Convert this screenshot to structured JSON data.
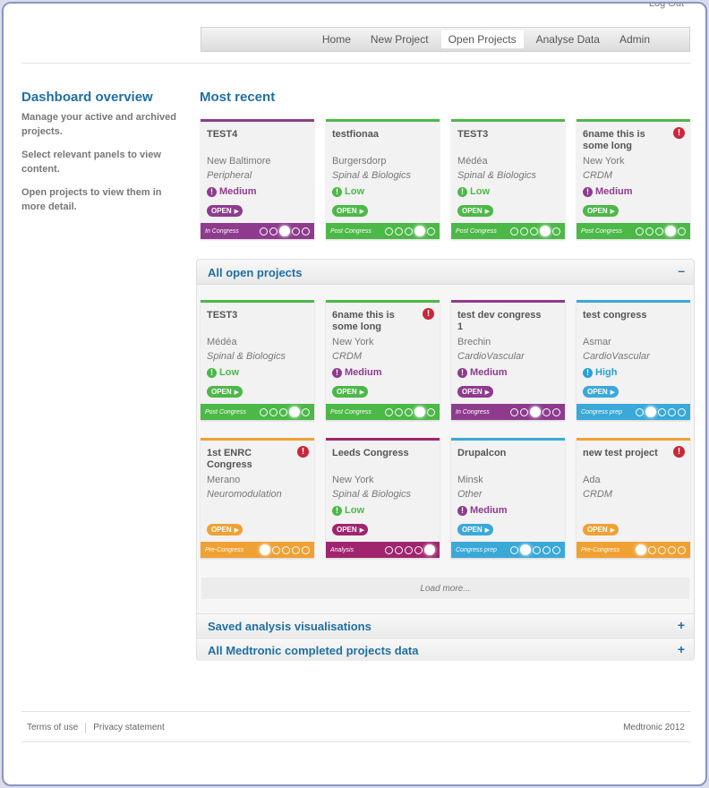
{
  "header": {
    "logout": "Log Out",
    "nav": [
      "Home",
      "New Project",
      "Open Projects",
      "Analyse Data",
      "Admin"
    ],
    "active_nav": "Open Projects"
  },
  "sidebar": {
    "title": "Dashboard overview",
    "paragraphs": [
      "Manage your active and archived projects.",
      "Select relevant panels to view content.",
      "Open projects to view them in more detail."
    ]
  },
  "most_recent": {
    "title": "Most recent",
    "cards": [
      {
        "title": "TEST4",
        "location": "New Baltimore",
        "area": "Peripheral",
        "priority": "Medium",
        "stage": "In Congress",
        "stage_step": 3,
        "alert": false,
        "theme": "purple"
      },
      {
        "title": "testfionaa",
        "location": "Burgersdorp",
        "area": "Spinal & Biologics",
        "priority": "Low",
        "stage": "Post Congress",
        "stage_step": 4,
        "alert": false,
        "theme": "green"
      },
      {
        "title": "TEST3",
        "location": "Médéa",
        "area": "Spinal & Biologics",
        "priority": "Low",
        "stage": "Post Congress",
        "stage_step": 4,
        "alert": false,
        "theme": "green"
      },
      {
        "title": "6name this is some long",
        "location": "New York",
        "area": "CRDM",
        "priority": "Medium",
        "stage": "Post Congress",
        "stage_step": 4,
        "alert": true,
        "theme": "green"
      }
    ]
  },
  "open_projects": {
    "title": "All open projects",
    "toggle": "–",
    "load_more": "Load more...",
    "cards": [
      {
        "title": "TEST3",
        "location": "Médéa",
        "area": "Spinal & Biologics",
        "priority": "Low",
        "stage": "Post Congress",
        "stage_step": 4,
        "alert": false,
        "theme": "green"
      },
      {
        "title": "6name this is some long",
        "location": "New York",
        "area": "CRDM",
        "priority": "Medium",
        "stage": "Post Congress",
        "stage_step": 4,
        "alert": true,
        "theme": "green"
      },
      {
        "title": "test dev congress 1",
        "location": "Brechin",
        "area": "CardioVascular",
        "priority": "Medium",
        "stage": "In Congress",
        "stage_step": 3,
        "alert": false,
        "theme": "purple"
      },
      {
        "title": "test congress",
        "location": "Asmar",
        "area": "CardioVascular",
        "priority": "High",
        "stage": "Congress prep",
        "stage_step": 2,
        "alert": false,
        "theme": "blue"
      },
      {
        "title": "1st ENRC Congress",
        "location": "Merano",
        "area": "Neuromodulation",
        "priority": "",
        "stage": "Pre-Congress",
        "stage_step": 1,
        "alert": true,
        "theme": "orange"
      },
      {
        "title": "Leeds Congress",
        "location": "New York",
        "area": "Spinal & Biologics",
        "priority": "Low",
        "stage": "Analysis",
        "stage_step": 5,
        "alert": false,
        "theme": "magenta"
      },
      {
        "title": "Drupalcon",
        "location": "Minsk",
        "area": "Other",
        "priority": "Medium",
        "stage": "Congress prep",
        "stage_step": 2,
        "alert": false,
        "theme": "blue"
      },
      {
        "title": "new test project",
        "location": "Ada",
        "area": "CRDM",
        "priority": "",
        "stage": "Pre-Congress",
        "stage_step": 1,
        "alert": true,
        "theme": "orange"
      }
    ]
  },
  "saved_panel": {
    "title": "Saved analysis visualisations",
    "toggle": "+"
  },
  "completed_panel": {
    "title": "All Medtronic completed projects data",
    "toggle": "+"
  },
  "open_label": "OPEN",
  "themes": {
    "purple": "#8e3b8e",
    "green": "#4cb848",
    "blue": "#3aa9d8",
    "orange": "#f0a133",
    "magenta": "#a0256e"
  },
  "priority_colors": {
    "Low": "#4cb848",
    "Medium": "#8e3b8e",
    "High": "#2a9fd6"
  },
  "footer": {
    "terms": "Terms of use",
    "privacy": "Privacy statement",
    "copyright": "Medtronic 2012"
  }
}
